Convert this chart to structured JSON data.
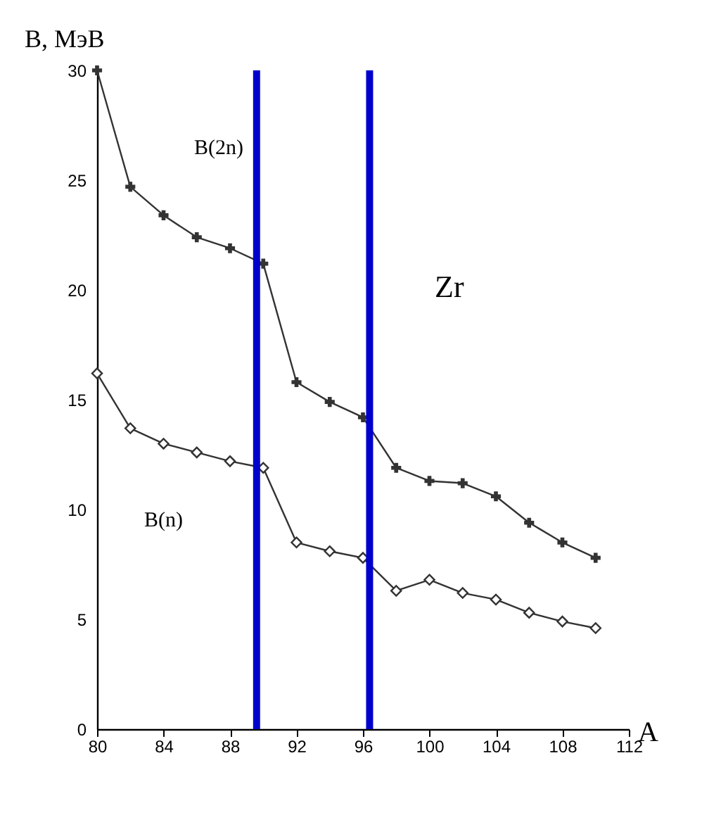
{
  "chart_data": {
    "type": "line",
    "ylabel": "B, МэВ",
    "xlabel": "A",
    "x": [
      80,
      82,
      84,
      86,
      88,
      90,
      92,
      94,
      96,
      98,
      100,
      102,
      104,
      106,
      108,
      110
    ],
    "series": [
      {
        "name": "B(2n)",
        "color": "#333333",
        "marker": "cross",
        "values": [
          30,
          24.7,
          23.4,
          22.4,
          21.9,
          21.2,
          15.8,
          14.9,
          14.2,
          11.9,
          11.3,
          11.2,
          10.6,
          9.4,
          8.5,
          7.8
        ]
      },
      {
        "name": "B(n)",
        "color": "#333333",
        "marker": "diamond",
        "values": [
          16.2,
          13.7,
          13.0,
          12.6,
          12.2,
          11.9,
          8.5,
          8.1,
          7.8,
          6.3,
          6.8,
          6.2,
          5.9,
          5.3,
          4.9,
          4.6
        ]
      }
    ],
    "annotations": [
      "Zr"
    ],
    "ref_lines": [
      {
        "axis": "x",
        "value": 89.6,
        "color": "#0000cc"
      },
      {
        "axis": "x",
        "value": 96.4,
        "color": "#0000cc"
      }
    ],
    "xlim": [
      80,
      112
    ],
    "xticks": [
      80,
      84,
      88,
      92,
      96,
      100,
      104,
      108,
      112
    ],
    "ylim": [
      0,
      30
    ],
    "yticks": [
      0,
      5,
      10,
      15,
      20,
      25,
      30
    ],
    "grid": false,
    "line_style": "solid"
  }
}
